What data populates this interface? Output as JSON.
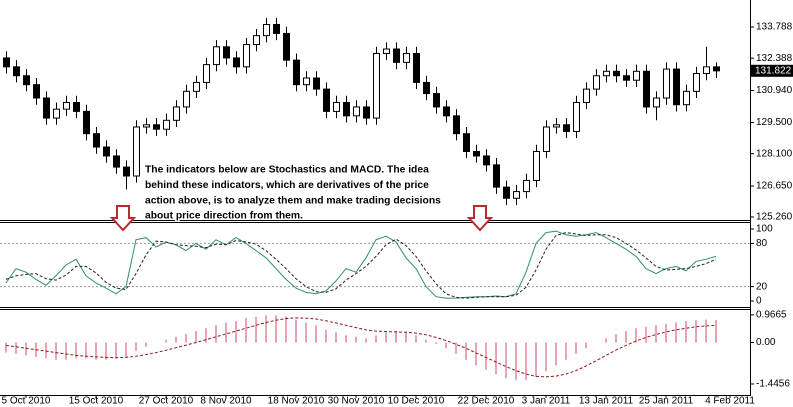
{
  "chart_data": [
    {
      "type": "candlestick",
      "annotation": [
        "The indicators below are Stochastics and MACD. The idea",
        "behind these indicators, which are derivatives of the price",
        "action above, is to analyze them and make trading decisions",
        "about price direction from them."
      ],
      "ylim": [
        125.125,
        135.0
      ],
      "yticks": [
        133.788,
        132.388,
        {
          "value": 130.94,
          "label": "130.940"
        },
        {
          "value": 129.5,
          "label": "129.500"
        },
        {
          "value": 128.1,
          "label": "128.100"
        },
        {
          "value": 126.65,
          "label": "126.650"
        },
        {
          "value": 125.26,
          "label": "125.260"
        }
      ],
      "current_price": 131.822,
      "up_color": "#ffffff",
      "down_color": "#000000",
      "open": [
        132.4,
        132.0,
        131.6,
        131.2,
        130.6,
        129.7,
        130.1,
        130.4,
        130.0,
        129.0,
        128.4,
        128.0,
        127.5,
        127.1,
        129.3,
        129.4,
        129.2,
        129.6,
        130.2,
        130.9,
        131.3,
        132.1,
        132.9,
        132.4,
        132.0,
        133.0,
        133.4,
        133.9,
        133.5,
        132.3,
        131.2,
        131.5,
        131.0,
        130.0,
        130.4,
        129.8,
        130.2,
        129.7,
        132.6,
        132.8,
        132.2,
        132.6,
        131.3,
        130.8,
        130.2,
        129.8,
        129.0,
        128.2,
        128.0,
        127.6,
        126.6,
        126.1,
        126.4,
        126.9,
        128.2,
        129.3,
        129.4,
        129.1,
        130.4,
        131.0,
        131.6,
        131.8,
        131.6,
        131.4,
        131.8,
        130.2,
        130.6,
        131.9,
        130.3,
        130.9,
        131.7,
        132.0
      ],
      "high": [
        132.7,
        132.3,
        131.9,
        131.5,
        130.9,
        130.4,
        130.7,
        130.7,
        130.3,
        129.3,
        128.7,
        128.3,
        127.8,
        129.6,
        129.7,
        129.7,
        129.9,
        130.5,
        131.2,
        131.6,
        132.4,
        133.2,
        133.2,
        132.7,
        133.3,
        133.7,
        134.2,
        134.2,
        133.8,
        132.6,
        131.8,
        131.8,
        131.3,
        130.7,
        130.7,
        130.5,
        130.5,
        132.9,
        133.1,
        133.1,
        132.9,
        132.9,
        131.6,
        131.1,
        130.5,
        130.1,
        129.3,
        128.5,
        128.3,
        127.9,
        126.9,
        126.7,
        127.2,
        128.5,
        129.6,
        129.7,
        129.7,
        130.7,
        131.3,
        131.9,
        132.1,
        132.1,
        131.9,
        132.1,
        132.1,
        130.9,
        132.2,
        132.2,
        131.2,
        132.0,
        132.9,
        132.2
      ],
      "low": [
        131.7,
        131.3,
        130.9,
        130.3,
        129.4,
        129.4,
        129.8,
        129.7,
        128.7,
        128.1,
        127.7,
        127.2,
        126.5,
        126.8,
        129.0,
        128.9,
        128.9,
        129.3,
        129.9,
        130.6,
        131.0,
        131.8,
        132.1,
        131.7,
        131.7,
        132.7,
        133.1,
        133.2,
        132.0,
        130.9,
        130.9,
        130.7,
        129.7,
        129.7,
        129.5,
        129.5,
        129.4,
        129.4,
        132.3,
        131.9,
        131.9,
        131.0,
        130.5,
        129.9,
        129.5,
        128.7,
        127.9,
        127.7,
        127.3,
        126.3,
        125.8,
        125.8,
        126.1,
        126.6,
        127.9,
        129.0,
        128.8,
        128.8,
        130.1,
        130.7,
        131.3,
        131.3,
        131.1,
        131.1,
        129.9,
        129.6,
        130.3,
        130.0,
        130.0,
        130.6,
        131.4,
        131.5
      ],
      "close": [
        132.0,
        131.6,
        131.2,
        130.6,
        129.7,
        130.1,
        130.4,
        130.0,
        129.0,
        128.4,
        128.0,
        127.5,
        127.1,
        129.3,
        129.4,
        129.2,
        129.6,
        130.2,
        130.9,
        131.3,
        132.1,
        132.9,
        132.4,
        132.0,
        133.0,
        133.4,
        133.9,
        133.5,
        132.3,
        131.2,
        131.5,
        131.0,
        130.0,
        130.4,
        129.8,
        130.2,
        129.7,
        132.6,
        132.8,
        132.2,
        132.6,
        131.3,
        130.8,
        130.2,
        129.8,
        129.0,
        128.2,
        128.0,
        127.6,
        126.6,
        126.1,
        126.4,
        126.9,
        128.2,
        129.3,
        129.4,
        129.1,
        130.4,
        131.0,
        131.6,
        131.8,
        131.6,
        131.4,
        131.8,
        130.2,
        130.6,
        131.9,
        130.3,
        130.9,
        131.7,
        132.0,
        131.82
      ]
    },
    {
      "type": "line",
      "ylim": [
        -8.3,
        109.7
      ],
      "yticks": [
        100,
        80,
        20,
        0
      ],
      "levels": [
        80,
        20
      ],
      "series": [
        {
          "color": "#2f8f6f",
          "dashed": false,
          "values": [
            25,
            45,
            40,
            30,
            22,
            35,
            50,
            58,
            35,
            25,
            18,
            10,
            20,
            85,
            88,
            75,
            82,
            78,
            70,
            80,
            72,
            85,
            78,
            88,
            80,
            70,
            60,
            45,
            30,
            18,
            12,
            10,
            14,
            28,
            45,
            40,
            60,
            85,
            90,
            82,
            60,
            45,
            20,
            6,
            4,
            4,
            5,
            6,
            6,
            7,
            6,
            10,
            40,
            80,
            95,
            97,
            92,
            90,
            92,
            95,
            88,
            80,
            72,
            62,
            45,
            38,
            45,
            48,
            42,
            55,
            58,
            62
          ]
        },
        {
          "color": "#222222",
          "dashed": true,
          "values": [
            30,
            35,
            37,
            38,
            31,
            29,
            36,
            48,
            48,
            39,
            26,
            18,
            16,
            38,
            64,
            83,
            82,
            78,
            77,
            76,
            74,
            79,
            78,
            84,
            82,
            79,
            70,
            58,
            45,
            31,
            20,
            13,
            12,
            17,
            29,
            38,
            48,
            62,
            78,
            86,
            77,
            62,
            42,
            24,
            10,
            5,
            4,
            5,
            6,
            6,
            6,
            8,
            19,
            43,
            72,
            91,
            95,
            93,
            91,
            92,
            92,
            88,
            80,
            71,
            60,
            48,
            43,
            44,
            45,
            48,
            52,
            58
          ]
        }
      ]
    },
    {
      "type": "bar",
      "ylim": [
        -1.83,
        1.17
      ],
      "yticks": [
        0.9665,
        {
          "value": 0,
          "label": "0.00"
        },
        -1.4456
      ],
      "xlim": [
        -0.6,
        74.4
      ],
      "xticks": [
        {
          "value": 2,
          "label": "5 Oct 2010"
        },
        {
          "value": 9,
          "label": "15 Oct 2010"
        },
        {
          "value": 16,
          "label": "27 Oct 2010"
        },
        {
          "value": 22,
          "label": "8 Nov 2010"
        },
        {
          "value": 29,
          "label": "18 Nov 2010"
        },
        {
          "value": 35,
          "label": "30 Nov 2010"
        },
        {
          "value": 41,
          "label": "10 Dec 2010"
        },
        {
          "value": 48,
          "label": "22 Dec 2010"
        },
        {
          "value": 54,
          "label": "3 Jan 2011"
        },
        {
          "value": 60,
          "label": "13 Jan 2011"
        },
        {
          "value": 66,
          "label": "25 Jan 2011"
        },
        {
          "value": 72.4,
          "label": "4 Feb 2011"
        }
      ],
      "series": [
        {
          "color": "#e8a3b4",
          "kind": "bar",
          "values": [
            -0.35,
            -0.4,
            -0.45,
            -0.5,
            -0.55,
            -0.6,
            -0.6,
            -0.55,
            -0.55,
            -0.6,
            -0.6,
            -0.55,
            -0.5,
            -0.3,
            -0.15,
            0.0,
            0.1,
            0.2,
            0.3,
            0.4,
            0.5,
            0.6,
            0.7,
            0.75,
            0.85,
            0.9,
            0.95,
            0.95,
            0.9,
            0.8,
            0.7,
            0.6,
            0.45,
            0.35,
            0.25,
            0.2,
            0.15,
            0.25,
            0.35,
            0.4,
            0.35,
            0.25,
            0.1,
            -0.05,
            -0.2,
            -0.4,
            -0.6,
            -0.8,
            -0.95,
            -1.1,
            -1.25,
            -1.3,
            -1.3,
            -1.2,
            -1.0,
            -0.8,
            -0.6,
            -0.4,
            -0.2,
            0.0,
            0.15,
            0.3,
            0.4,
            0.5,
            0.55,
            0.6,
            0.65,
            0.7,
            0.75,
            0.78,
            0.8,
            0.78
          ]
        },
        {
          "color": "#8b1a1a",
          "kind": "line",
          "values": [
            -0.1,
            -0.15,
            -0.2,
            -0.25,
            -0.3,
            -0.35,
            -0.4,
            -0.45,
            -0.48,
            -0.5,
            -0.52,
            -0.53,
            -0.52,
            -0.48,
            -0.42,
            -0.35,
            -0.27,
            -0.18,
            -0.09,
            0.0,
            0.1,
            0.2,
            0.3,
            0.4,
            0.5,
            0.6,
            0.7,
            0.78,
            0.84,
            0.86,
            0.85,
            0.82,
            0.76,
            0.68,
            0.6,
            0.52,
            0.44,
            0.4,
            0.38,
            0.37,
            0.36,
            0.33,
            0.27,
            0.18,
            0.07,
            -0.06,
            -0.2,
            -0.36,
            -0.52,
            -0.68,
            -0.84,
            -0.98,
            -1.1,
            -1.18,
            -1.2,
            -1.17,
            -1.1,
            -0.98,
            -0.82,
            -0.64,
            -0.45,
            -0.26,
            -0.1,
            0.05,
            0.18,
            0.28,
            0.37,
            0.44,
            0.5,
            0.55,
            0.58,
            0.6
          ]
        }
      ]
    }
  ]
}
